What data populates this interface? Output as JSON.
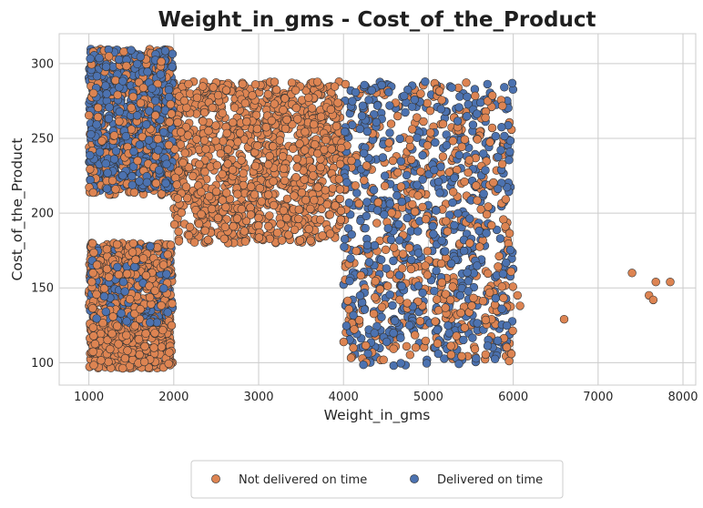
{
  "chart_data": {
    "type": "scatter",
    "title": "Weight_in_gms - Cost_of_the_Product",
    "xlabel": "Weight_in_gms",
    "ylabel": "Cost_of_the_Product",
    "xlim": [
      650,
      8150
    ],
    "ylim": [
      85,
      320
    ],
    "x_ticks": [
      1000,
      2000,
      3000,
      4000,
      5000,
      6000,
      7000,
      8000
    ],
    "y_ticks": [
      100,
      150,
      200,
      250,
      300
    ],
    "grid": true,
    "legend_position": "bottom-center",
    "colors": {
      "not_delivered": "#dd8452",
      "delivered": "#4c72b0",
      "edge": "#333333",
      "grid": "#cccccc",
      "spine": "#cccccc"
    },
    "series": [
      {
        "name": "Not delivered on time",
        "color": "#dd8452",
        "clusters": [
          {
            "x": [
              1000,
              1990
            ],
            "y": [
              212,
              310
            ],
            "share": 0.38
          },
          {
            "x": [
              1000,
              1990
            ],
            "y": [
              96,
              180
            ],
            "share": 0.78
          },
          {
            "x": [
              2000,
              3990
            ],
            "y": [
              180,
              288
            ],
            "share": 1.0
          },
          {
            "x": [
              4000,
              6000
            ],
            "y": [
              100,
              288
            ],
            "share": 0.44
          }
        ],
        "points": [
          {
            "x": 6600,
            "y": 129
          },
          {
            "x": 7400,
            "y": 160
          },
          {
            "x": 7600,
            "y": 145
          },
          {
            "x": 7650,
            "y": 142
          },
          {
            "x": 7680,
            "y": 154
          },
          {
            "x": 7850,
            "y": 154
          },
          {
            "x": 6050,
            "y": 145
          },
          {
            "x": 6080,
            "y": 138
          }
        ]
      },
      {
        "name": "Delivered on time",
        "color": "#4c72b0",
        "clusters": [
          {
            "x": [
              1000,
              1990
            ],
            "y": [
              215,
              310
            ],
            "share": 0.62
          },
          {
            "x": [
              1000,
              1990
            ],
            "y": [
              125,
              178
            ],
            "share": 0.22
          },
          {
            "x": [
              4000,
              6000
            ],
            "y": [
              98,
              288
            ],
            "share": 0.56
          }
        ]
      }
    ]
  }
}
